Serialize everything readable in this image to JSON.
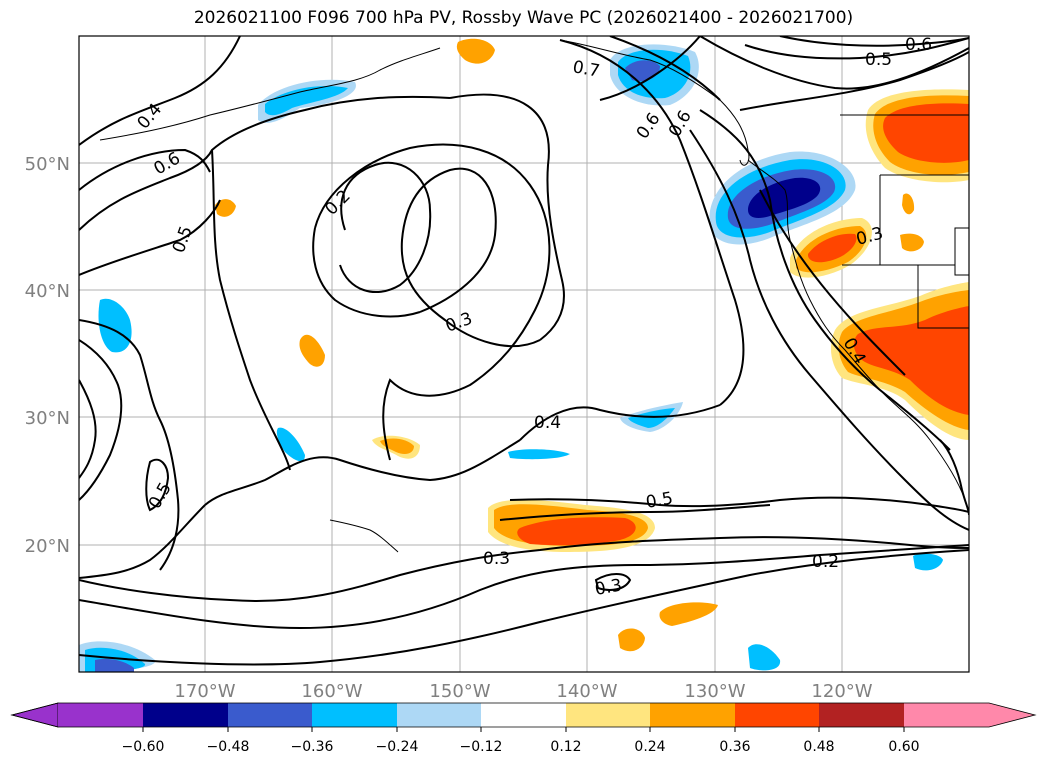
{
  "title": "2026021100 F096 700 hPa PV, Rossby Wave PC (2026021400 - 2026021700)",
  "axes": {
    "lat_labels": [
      "50°N",
      "40°N",
      "30°N",
      "20°N"
    ],
    "lon_labels": [
      "170°W",
      "160°W",
      "150°W",
      "140°W",
      "130°W",
      "120°W"
    ]
  },
  "contour_labels": [
    "0.6",
    "0.5",
    "0.7",
    "0.4",
    "0.6",
    "0.6",
    "0.2",
    "0.5",
    "0.3",
    "0.4",
    "0.5",
    "0.5",
    "0.3",
    "0.3",
    "0.2",
    "0.3",
    "0.4",
    "0.6"
  ],
  "colorbar": {
    "ticks": [
      "−0.60",
      "−0.48",
      "−0.36",
      "−0.24",
      "−0.12",
      "0.12",
      "0.24",
      "0.36",
      "0.48",
      "0.60"
    ],
    "colors": [
      "#9932cc",
      "#00008b",
      "#3a5bcd",
      "#00bfff",
      "#add8f5",
      "#ffffff",
      "#ffe57f",
      "#ffa200",
      "#ff4500",
      "#b22222",
      "#ff88aa"
    ]
  },
  "palette": {
    "dark_blue": "#00008b",
    "mid_blue": "#3a5bcd",
    "light_blue": "#00bfff",
    "pale_blue": "#add8f5",
    "pale_yellow": "#ffe57f",
    "orange": "#ffa200",
    "red_orange": "#ff4500"
  }
}
